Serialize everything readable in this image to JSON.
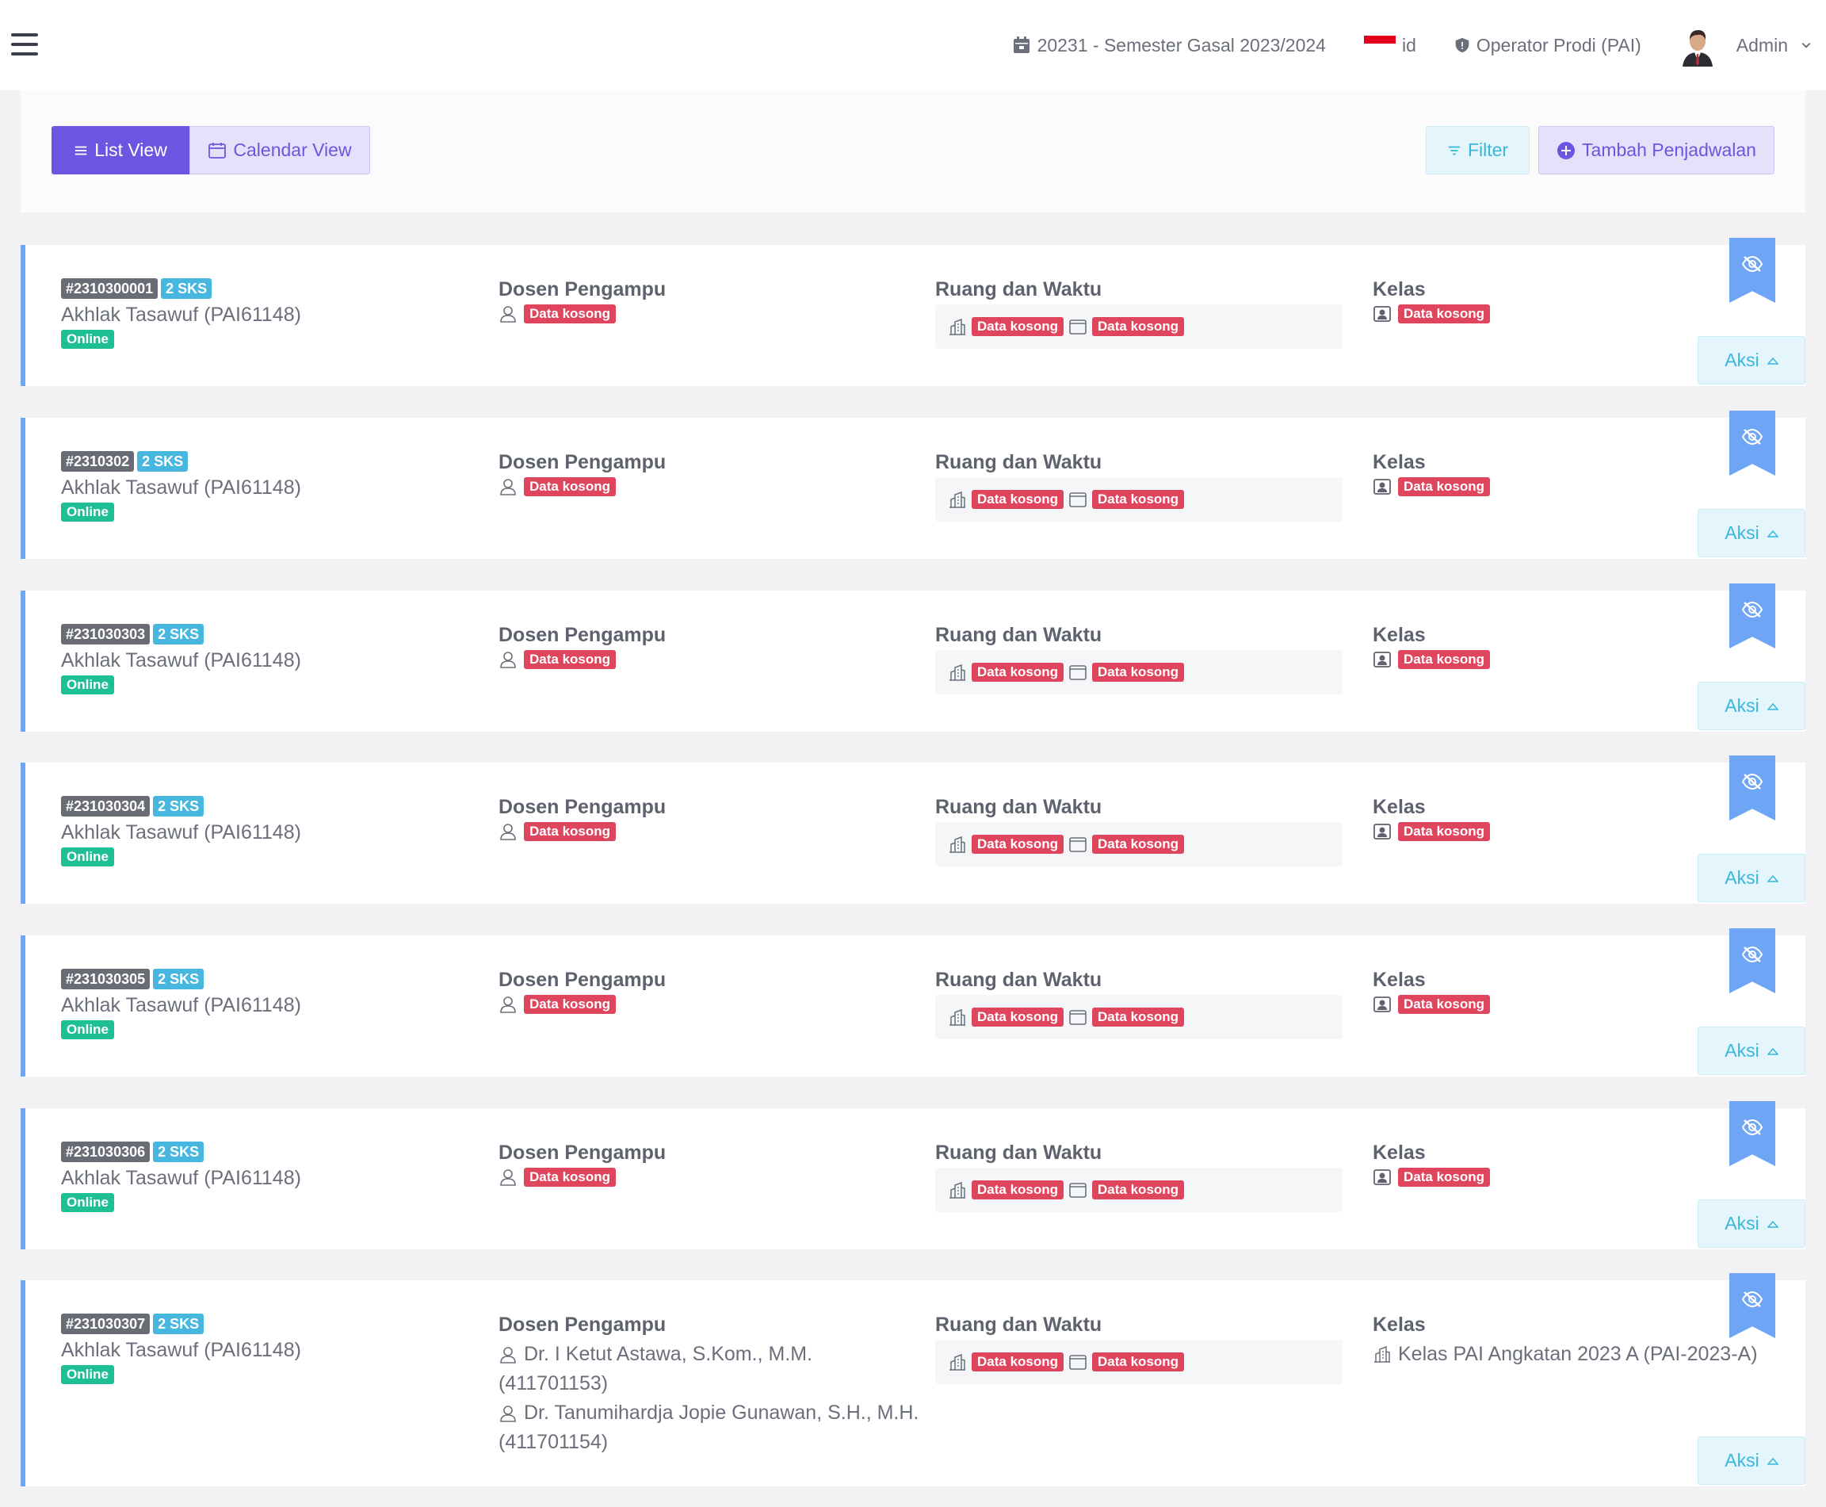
{
  "navbar": {
    "semester": "20231 - Semester Gasal 2023/2024",
    "language": "id",
    "role": "Operator Prodi (PAI)",
    "user": "Admin"
  },
  "toolbar": {
    "list_view": "List View",
    "calendar_view": "Calendar View",
    "filter": "Filter",
    "add_schedule": "Tambah Penjadwalan"
  },
  "labels": {
    "lecturer": "Dosen Pengampu",
    "room_time": "Ruang dan Waktu",
    "class": "Kelas",
    "empty": "Data kosong",
    "action": "Aksi"
  },
  "colors": {
    "primary": "#6c55e0",
    "info": "#39b6da",
    "success": "#1fbf95",
    "danger": "#e0455e",
    "card_accent": "#6ea5f5"
  },
  "schedules": [
    {
      "code": "#2310300001",
      "sks": "2 SKS",
      "course": "Akhlak Tasawuf (PAI61148)",
      "mode": "Online"
    },
    {
      "code": "#2310302",
      "sks": "2 SKS",
      "course": "Akhlak Tasawuf (PAI61148)",
      "mode": "Online"
    },
    {
      "code": "#231030303",
      "sks": "2 SKS",
      "course": "Akhlak Tasawuf (PAI61148)",
      "mode": "Online"
    },
    {
      "code": "#231030304",
      "sks": "2 SKS",
      "course": "Akhlak Tasawuf (PAI61148)",
      "mode": "Online"
    },
    {
      "code": "#231030305",
      "sks": "2 SKS",
      "course": "Akhlak Tasawuf (PAI61148)",
      "mode": "Online"
    },
    {
      "code": "#231030306",
      "sks": "2 SKS",
      "course": "Akhlak Tasawuf (PAI61148)",
      "mode": "Online"
    },
    {
      "code": "#231030307",
      "sks": "2 SKS",
      "course": "Akhlak Tasawuf (PAI61148)",
      "mode": "Online",
      "lecturers": [
        {
          "name": "Dr. I Ketut Astawa, S.Kom., M.M.",
          "id": "(411701153)"
        },
        {
          "name": "Dr. Tanumihardja Jopie Gunawan, S.H., M.H.",
          "id": "(411701154)"
        }
      ],
      "class_name": "Kelas PAI Angkatan 2023 A (PAI-2023-A)"
    }
  ]
}
